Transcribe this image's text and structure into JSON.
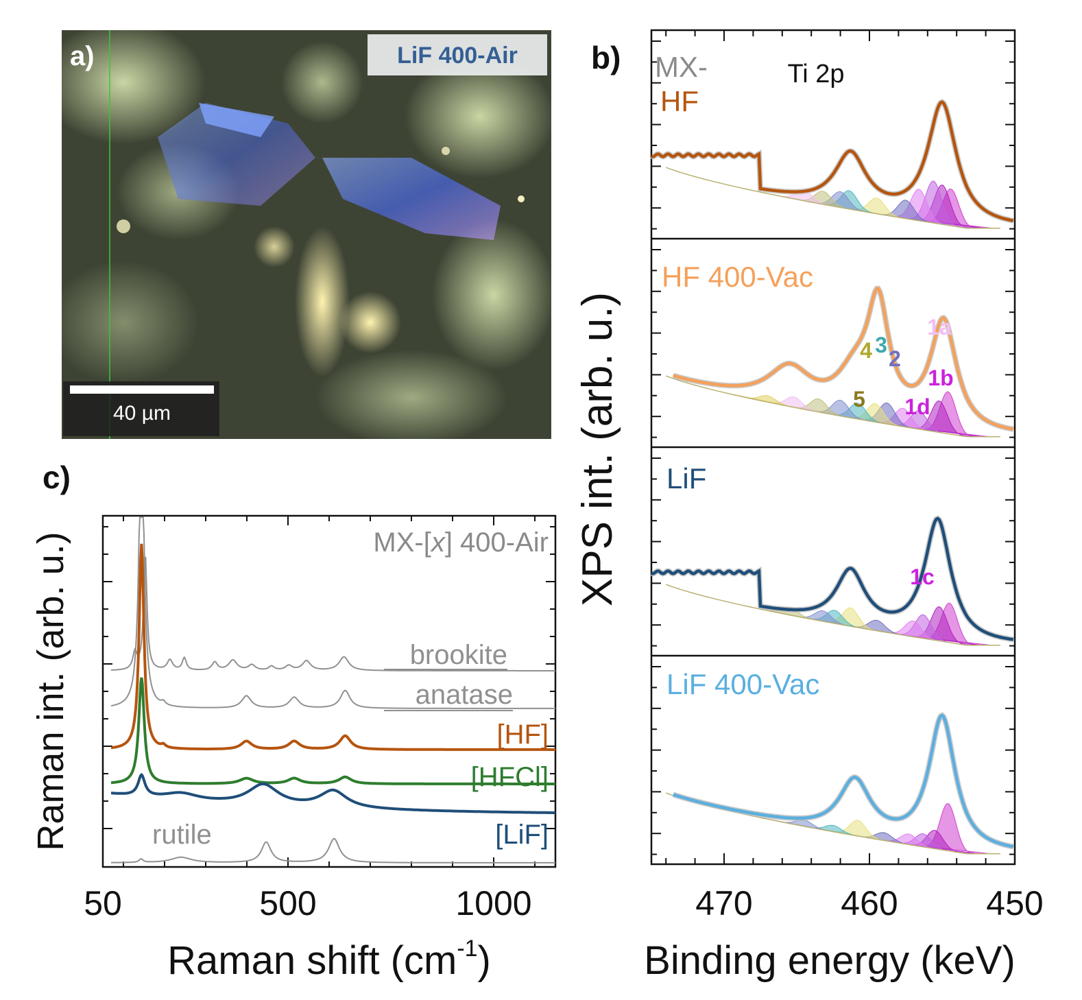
{
  "figure": {
    "panel_a": {
      "label": "a)",
      "sample_label": "LiF 400-Air",
      "scalebar_label": "40 µm",
      "image_description_name": "optical-micrograph"
    },
    "panel_b_label": "b)",
    "panel_c_label": "c)",
    "colors": {
      "hf": "#b5550f",
      "hf400vac": "#f5a05a",
      "lif": "#1f4e79",
      "lif400vac": "#5aafe0",
      "hfcl": "#2e7d2e",
      "ref_gray": "#909090",
      "fit_gray": "#b0b0b0"
    }
  },
  "chart_data": [
    {
      "id": "raman",
      "type": "line",
      "title": "MX-[x] 400-Air",
      "title_prefix": "MX-[",
      "title_italic": "x",
      "title_suffix": "] 400-Air",
      "xlabel": "Raman shift (cm",
      "xlabel_sup": "-1",
      "xlabel_close": ")",
      "ylabel": "Raman int. (arb. u.)",
      "xlim": [
        50,
        1150
      ],
      "xticks": [
        50,
        500,
        1000
      ],
      "xtick_labels": [
        "50",
        "500",
        "1000"
      ],
      "series": [
        {
          "name": "brookite",
          "label": "brookite",
          "color_key": "ref_gray",
          "offset": 2.8,
          "peaks": [
            [
              128,
              0.25,
              6
            ],
            [
              153,
              1.7,
              5
            ],
            [
              213,
              0.15,
              8
            ],
            [
              248,
              0.18,
              6
            ],
            [
              322,
              0.12,
              8
            ],
            [
              366,
              0.15,
              12
            ],
            [
              412,
              0.08,
              10
            ],
            [
              460,
              0.06,
              8
            ],
            [
              502,
              0.07,
              10
            ],
            [
              545,
              0.14,
              12
            ],
            [
              636,
              0.2,
              14
            ]
          ]
        },
        {
          "name": "anatase",
          "label": "anatase",
          "color_key": "ref_gray",
          "offset": 2.25,
          "peaks": [
            [
              144,
              4.4,
              7
            ],
            [
              197,
              0.05,
              6
            ],
            [
              399,
              0.18,
              14
            ],
            [
              515,
              0.16,
              14
            ],
            [
              639,
              0.26,
              14
            ]
          ]
        },
        {
          "name": "[HF]",
          "label": "[HF]",
          "color_key": "hf",
          "offset": 1.65,
          "peaks": [
            [
              144,
              3.0,
              7
            ],
            [
              197,
              0.04,
              6
            ],
            [
              399,
              0.12,
              16
            ],
            [
              515,
              0.12,
              16
            ],
            [
              639,
              0.2,
              16
            ]
          ]
        },
        {
          "name": "[HFCl]",
          "label": "[HFCl]",
          "color_key": "hfcl",
          "offset": 1.15,
          "peaks": [
            [
              144,
              1.55,
              8
            ],
            [
              399,
              0.08,
              20
            ],
            [
              515,
              0.08,
              18
            ],
            [
              639,
              0.1,
              18
            ]
          ]
        },
        {
          "name": "[LiF]",
          "label": "[LiF]",
          "color_key": "lif",
          "offset": 0.7,
          "peaks": [
            [
              144,
              0.3,
              10
            ],
            [
              240,
              0.1,
              50
            ],
            [
              440,
              0.3,
              45
            ],
            [
              610,
              0.25,
              40
            ]
          ]
        },
        {
          "name": "rutile",
          "label": "rutile",
          "color_key": "ref_gray",
          "offset": 0.0,
          "peaks": [
            [
              143,
              0.05,
              6
            ],
            [
              240,
              0.08,
              30
            ],
            [
              447,
              0.3,
              14
            ],
            [
              612,
              0.35,
              16
            ]
          ]
        }
      ]
    },
    {
      "id": "xps",
      "type": "line",
      "title": "Ti 2p",
      "xlabel": "Binding energy (keV)",
      "ylabel": "XPS int. (arb. u.)",
      "xlim": [
        475,
        450
      ],
      "xticks": [
        470,
        460,
        450
      ],
      "xtick_labels": [
        "470",
        "460",
        "450"
      ],
      "panels": [
        {
          "name": "MX-HF",
          "label_line1": "MX-",
          "label_line2": "HF",
          "color_key": "hf",
          "main_peaks": [
            [
              455.0,
              1.0,
              1.2
            ],
            [
              461.3,
              0.45,
              1.3
            ]
          ],
          "fit_components": [
            [
              454.4,
              0.7
            ],
            [
              455.0,
              0.75
            ],
            [
              455.6,
              0.8
            ],
            [
              456.6,
              0.6
            ],
            [
              457.5,
              0.35
            ],
            [
              459.5,
              0.3
            ],
            [
              461.4,
              0.35
            ],
            [
              462.0,
              0.3
            ],
            [
              463.2,
              0.25
            ],
            [
              464.5,
              0.2
            ]
          ]
        },
        {
          "name": "HF 400-Vac",
          "label": "HF 400-Vac",
          "color_key": "hf400vac",
          "main_peaks": [
            [
              459.4,
              0.9,
              0.9
            ],
            [
              465.5,
              0.3,
              1.8
            ],
            [
              454.9,
              0.9,
              1.1
            ],
            [
              461.0,
              0.3,
              1.5
            ]
          ],
          "fit_components": [
            [
              454.6,
              0.8
            ],
            [
              455.2,
              0.6
            ],
            [
              456.6,
              0.35
            ],
            [
              457.7,
              0.35
            ],
            [
              458.8,
              0.4
            ],
            [
              459.6,
              0.35
            ],
            [
              460.8,
              0.3
            ],
            [
              462.0,
              0.3
            ],
            [
              463.5,
              0.25
            ],
            [
              465.2,
              0.2
            ],
            [
              467.0,
              0.12
            ]
          ],
          "component_labels": [
            "1a",
            "1b",
            "1d",
            "2",
            "3",
            "4",
            "5"
          ]
        },
        {
          "name": "LiF",
          "label": "LiF",
          "color_key": "lif",
          "main_peaks": [
            [
              455.3,
              1.0,
              1.1
            ],
            [
              461.3,
              0.45,
              1.2
            ]
          ],
          "fit_components": [
            [
              454.5,
              0.75
            ],
            [
              455.2,
              0.65
            ],
            [
              456.3,
              0.45
            ],
            [
              457.0,
              0.3
            ],
            [
              459.5,
              0.2
            ],
            [
              461.3,
              0.35
            ],
            [
              462.4,
              0.25
            ],
            [
              463.2,
              0.2
            ],
            [
              465.5,
              0.15
            ]
          ],
          "component_labels": [
            "1c"
          ]
        },
        {
          "name": "LiF 400-Vac",
          "label": "LiF 400-Vac",
          "color_key": "lif400vac",
          "main_peaks": [
            [
              455.0,
              1.1,
              1.1
            ],
            [
              461.0,
              0.45,
              1.3
            ]
          ],
          "fit_components": [
            [
              454.6,
              0.9
            ],
            [
              455.5,
              0.35
            ],
            [
              456.3,
              0.25
            ],
            [
              457.3,
              0.2
            ],
            [
              459.0,
              0.15
            ],
            [
              460.8,
              0.3
            ],
            [
              462.5,
              0.12
            ],
            [
              464.5,
              0.12
            ]
          ]
        }
      ]
    }
  ]
}
